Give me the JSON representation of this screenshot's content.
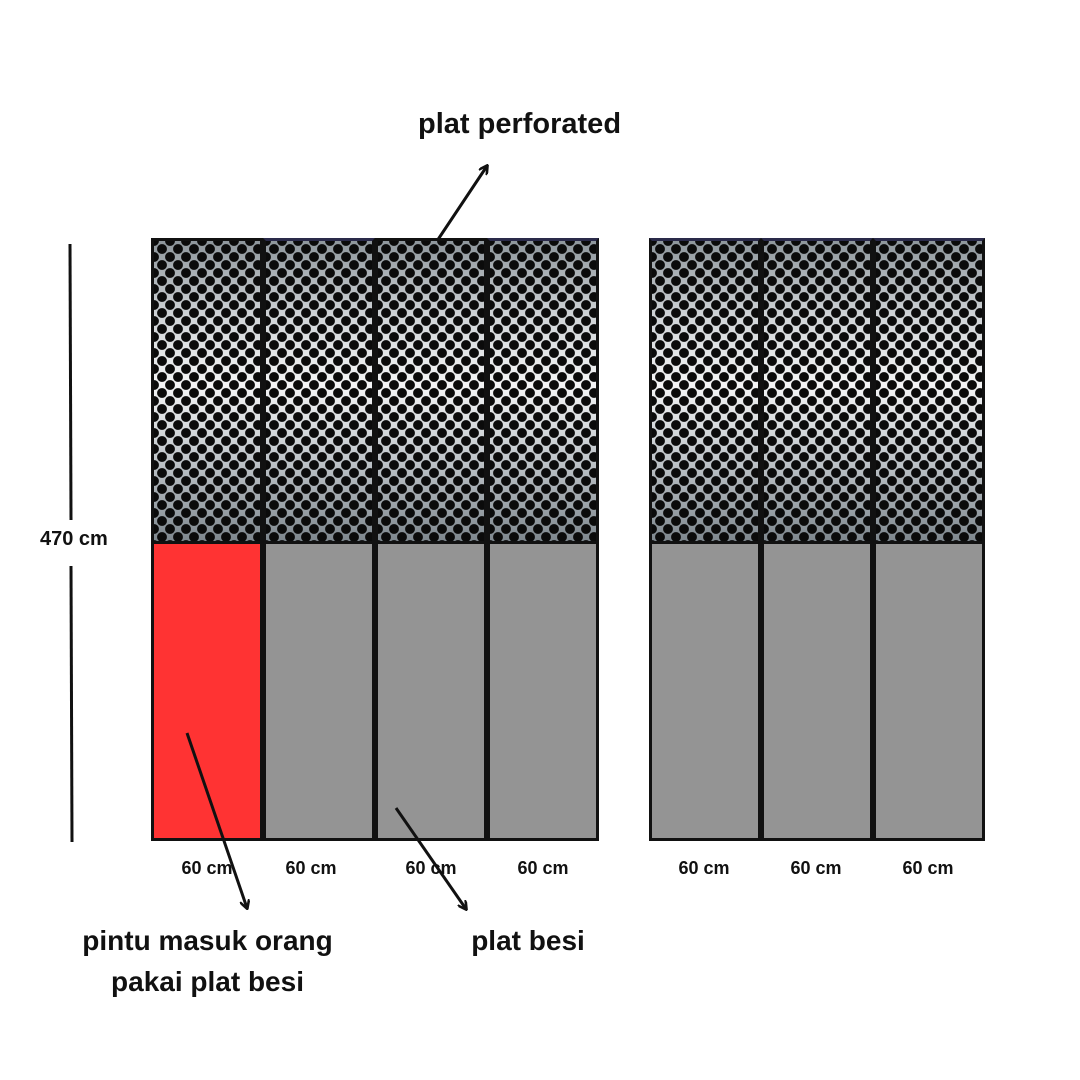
{
  "title": "plat perforated",
  "height_label": "470 cm",
  "panel_widths": [
    "60 cm",
    "60 cm",
    "60 cm",
    "60 cm",
    "60 cm",
    "60 cm",
    "60 cm"
  ],
  "label_door_line1": "pintu masuk orang",
  "label_door_line2": "pakai plat besi",
  "label_steel": "plat besi",
  "colors": {
    "door": "#ff3333",
    "steel_plate": "#949494",
    "outline": "#111111"
  }
}
